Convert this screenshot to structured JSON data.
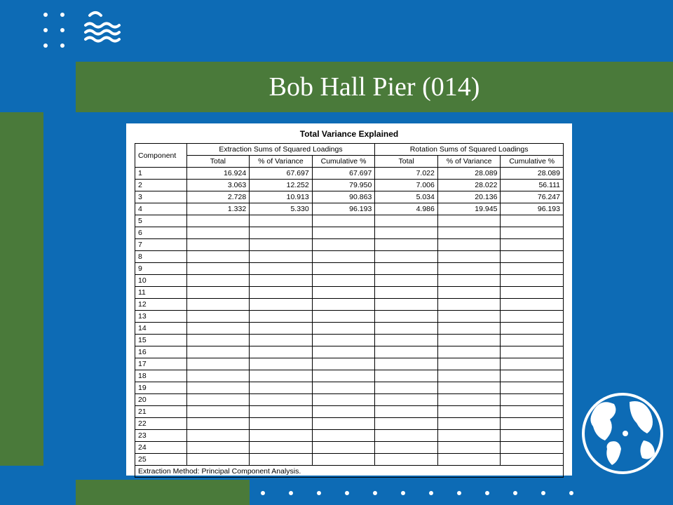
{
  "slide": {
    "title": "Bob Hall Pier (014)",
    "background_color": "#0d6bb5",
    "accent_color": "#4a7a3a",
    "dot_color": "#ffffff",
    "title_font": "Times New Roman",
    "title_fontsize_pt": 28
  },
  "table": {
    "title": "Total Variance Explained",
    "group_headers": [
      "Extraction Sums of Squared Loadings",
      "Rotation Sums of Squared Loadings"
    ],
    "sub_headers": [
      "Total",
      "% of Variance",
      "Cumulative %",
      "Total",
      "% of Variance",
      "Cumulative %"
    ],
    "component_header": "Component",
    "rows": [
      {
        "c": "1",
        "e_tot": "16.924",
        "e_var": "67.697",
        "e_cum": "67.697",
        "r_tot": "7.022",
        "r_var": "28.089",
        "r_cum": "28.089"
      },
      {
        "c": "2",
        "e_tot": "3.063",
        "e_var": "12.252",
        "e_cum": "79.950",
        "r_tot": "7.006",
        "r_var": "28.022",
        "r_cum": "56.111"
      },
      {
        "c": "3",
        "e_tot": "2.728",
        "e_var": "10.913",
        "e_cum": "90.863",
        "r_tot": "5.034",
        "r_var": "20.136",
        "r_cum": "76.247"
      },
      {
        "c": "4",
        "e_tot": "1.332",
        "e_var": "5.330",
        "e_cum": "96.193",
        "r_tot": "4.986",
        "r_var": "19.945",
        "r_cum": "96.193"
      },
      {
        "c": "5"
      },
      {
        "c": "6"
      },
      {
        "c": "7"
      },
      {
        "c": "8"
      },
      {
        "c": "9"
      },
      {
        "c": "10"
      },
      {
        "c": "11"
      },
      {
        "c": "12"
      },
      {
        "c": "13"
      },
      {
        "c": "14"
      },
      {
        "c": "15"
      },
      {
        "c": "16"
      },
      {
        "c": "17"
      },
      {
        "c": "18"
      },
      {
        "c": "19"
      },
      {
        "c": "20"
      },
      {
        "c": "21"
      },
      {
        "c": "22"
      },
      {
        "c": "23"
      },
      {
        "c": "24"
      },
      {
        "c": "25"
      }
    ],
    "method_note": "Extraction Method: Principal Component Analysis.",
    "border_color": "#000000",
    "text_color": "#000000",
    "background_color": "#ffffff",
    "fontsize_pt": 8
  },
  "decor": {
    "bottom_dot_count": 12,
    "topleft_dot_rows": 3,
    "topleft_dot_cols": 2
  }
}
